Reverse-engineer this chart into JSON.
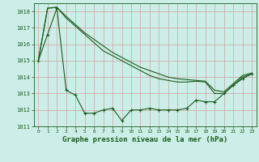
{
  "title": "Graphe pression niveau de la mer (hPa)",
  "background_color": "#cceee8",
  "grid_color": "#b0d8d0",
  "line_color": "#1a5c1a",
  "x_ticks": [
    0,
    1,
    2,
    3,
    4,
    5,
    6,
    7,
    8,
    9,
    10,
    11,
    12,
    13,
    14,
    15,
    16,
    17,
    18,
    19,
    20,
    21,
    22,
    23
  ],
  "ylim": [
    1011,
    1018.5
  ],
  "yticks": [
    1011,
    1012,
    1013,
    1014,
    1015,
    1016,
    1017,
    1018
  ],
  "series_lower": [
    1015.0,
    1016.6,
    1018.2,
    1013.2,
    1012.9,
    1011.8,
    1011.8,
    1012.0,
    1012.1,
    1011.35,
    1012.0,
    1012.0,
    1012.1,
    1012.0,
    1012.0,
    1012.0,
    1012.1,
    1012.6,
    1012.5,
    1012.5,
    1013.0,
    1013.5,
    1013.9,
    1014.2
  ],
  "series_upper1": [
    1015.0,
    1018.2,
    1018.25,
    1017.6,
    1017.1,
    1016.6,
    1016.1,
    1015.6,
    1015.3,
    1015.0,
    1014.7,
    1014.4,
    1014.1,
    1013.9,
    1013.8,
    1013.7,
    1013.7,
    1013.75,
    1013.7,
    1013.0,
    1013.0,
    1013.5,
    1014.0,
    1014.2
  ],
  "series_upper2": [
    1015.0,
    1018.2,
    1018.25,
    1017.7,
    1017.2,
    1016.7,
    1016.3,
    1015.9,
    1015.5,
    1015.2,
    1014.9,
    1014.6,
    1014.4,
    1014.2,
    1014.0,
    1013.9,
    1013.85,
    1013.8,
    1013.75,
    1013.2,
    1013.1,
    1013.6,
    1014.1,
    1014.25
  ]
}
